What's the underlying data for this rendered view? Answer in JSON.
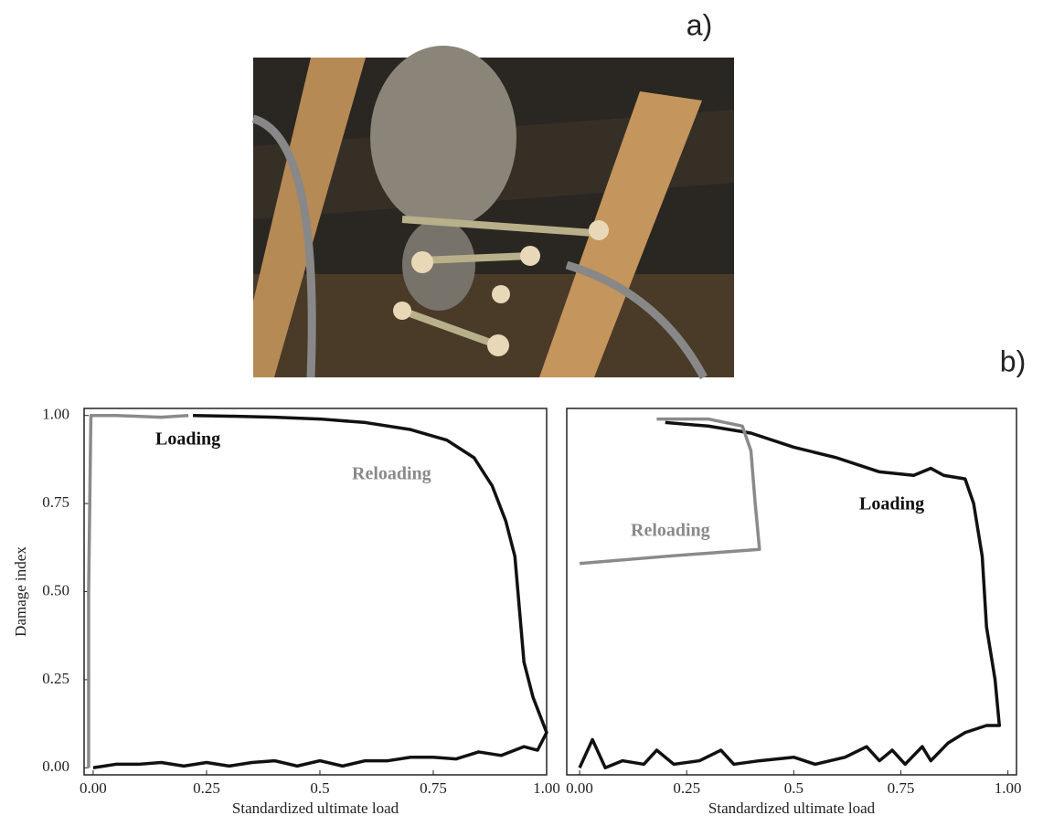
{
  "panel_labels": {
    "a": "a)",
    "b": "b)"
  },
  "chart_data": [
    {
      "type": "line",
      "xlabel": "Standardized ultimate load",
      "ylabel": "Damage index",
      "xlim": [
        -0.02,
        1.0
      ],
      "ylim": [
        -0.02,
        1.02
      ],
      "xticks": [
        {
          "value": 0,
          "label": "0.00"
        },
        {
          "value": 0.25,
          "label": "0.25"
        },
        0.5,
        {
          "value": 0.75,
          "label": "0.75"
        },
        {
          "value": 1,
          "label": "1.00"
        }
      ],
      "yticks": [
        {
          "value": 0,
          "label": "0.00"
        },
        {
          "value": 0.25,
          "label": "0.25"
        },
        {
          "value": 0.5,
          "label": "0.50"
        },
        {
          "value": 0.75,
          "label": "0.75"
        },
        {
          "value": 1,
          "label": "1.00"
        }
      ],
      "series": [
        {
          "name": "Loading",
          "color": "#111111",
          "x": [
            0,
            0.05,
            0.1,
            0.15,
            0.2,
            0.25,
            0.3,
            0.35,
            0.4,
            0.45,
            0.5,
            0.55,
            0.6,
            0.65,
            0.7,
            0.75,
            0.8,
            0.85,
            0.9,
            0.95,
            0.98,
            1.0,
            0.97,
            0.95,
            0.94,
            0.93,
            0.91,
            0.88,
            0.84,
            0.78,
            0.7,
            0.6,
            0.5,
            0.4,
            0.3,
            0.22
          ],
          "values": [
            0,
            0.01,
            0.01,
            0.015,
            0.005,
            0.015,
            0.005,
            0.015,
            0.02,
            0.005,
            0.02,
            0.005,
            0.02,
            0.02,
            0.03,
            0.03,
            0.025,
            0.045,
            0.035,
            0.06,
            0.05,
            0.1,
            0.2,
            0.3,
            0.45,
            0.6,
            0.7,
            0.8,
            0.88,
            0.93,
            0.96,
            0.98,
            0.99,
            0.995,
            0.998,
            1.0
          ]
        },
        {
          "name": "Reloading",
          "color": "#8a8a8a",
          "x": [
            -0.01,
            -0.01,
            -0.005,
            0.05,
            0.15,
            0.21
          ],
          "values": [
            0,
            0.5,
            1.0,
            1.0,
            0.995,
            1.0
          ]
        }
      ]
    },
    {
      "type": "line",
      "xlabel": "Standardized ultimate load",
      "xlim": [
        -0.03,
        1.02
      ],
      "ylim": [
        -0.02,
        1.02
      ],
      "xticks": [
        {
          "value": 0,
          "label": "0.00"
        },
        {
          "value": 0.25,
          "label": "0.25"
        },
        0.5,
        {
          "value": 0.75,
          "label": "0.75"
        },
        {
          "value": 1,
          "label": "1.00"
        }
      ],
      "series": [
        {
          "name": "Loading",
          "color": "#111111",
          "x": [
            0.0,
            0.03,
            0.06,
            0.1,
            0.15,
            0.18,
            0.22,
            0.28,
            0.33,
            0.36,
            0.42,
            0.5,
            0.55,
            0.62,
            0.67,
            0.7,
            0.73,
            0.76,
            0.8,
            0.82,
            0.86,
            0.9,
            0.95,
            0.98,
            0.97,
            0.95,
            0.94,
            0.92,
            0.9,
            0.85,
            0.82,
            0.78,
            0.7,
            0.6,
            0.5,
            0.4,
            0.3,
            0.2
          ],
          "values": [
            0.0,
            0.08,
            0.0,
            0.02,
            0.01,
            0.05,
            0.01,
            0.02,
            0.05,
            0.01,
            0.02,
            0.03,
            0.01,
            0.03,
            0.06,
            0.02,
            0.05,
            0.01,
            0.06,
            0.02,
            0.07,
            0.1,
            0.12,
            0.12,
            0.25,
            0.4,
            0.6,
            0.75,
            0.82,
            0.83,
            0.85,
            0.83,
            0.84,
            0.88,
            0.91,
            0.95,
            0.97,
            0.98
          ]
        },
        {
          "name": "Reloading",
          "color": "#8a8a8a",
          "x": [
            0.0,
            0.2,
            0.42,
            0.41,
            0.4,
            0.38,
            0.3,
            0.18
          ],
          "values": [
            0.58,
            0.6,
            0.62,
            0.75,
            0.9,
            0.97,
            0.99,
            0.99
          ]
        }
      ]
    }
  ]
}
